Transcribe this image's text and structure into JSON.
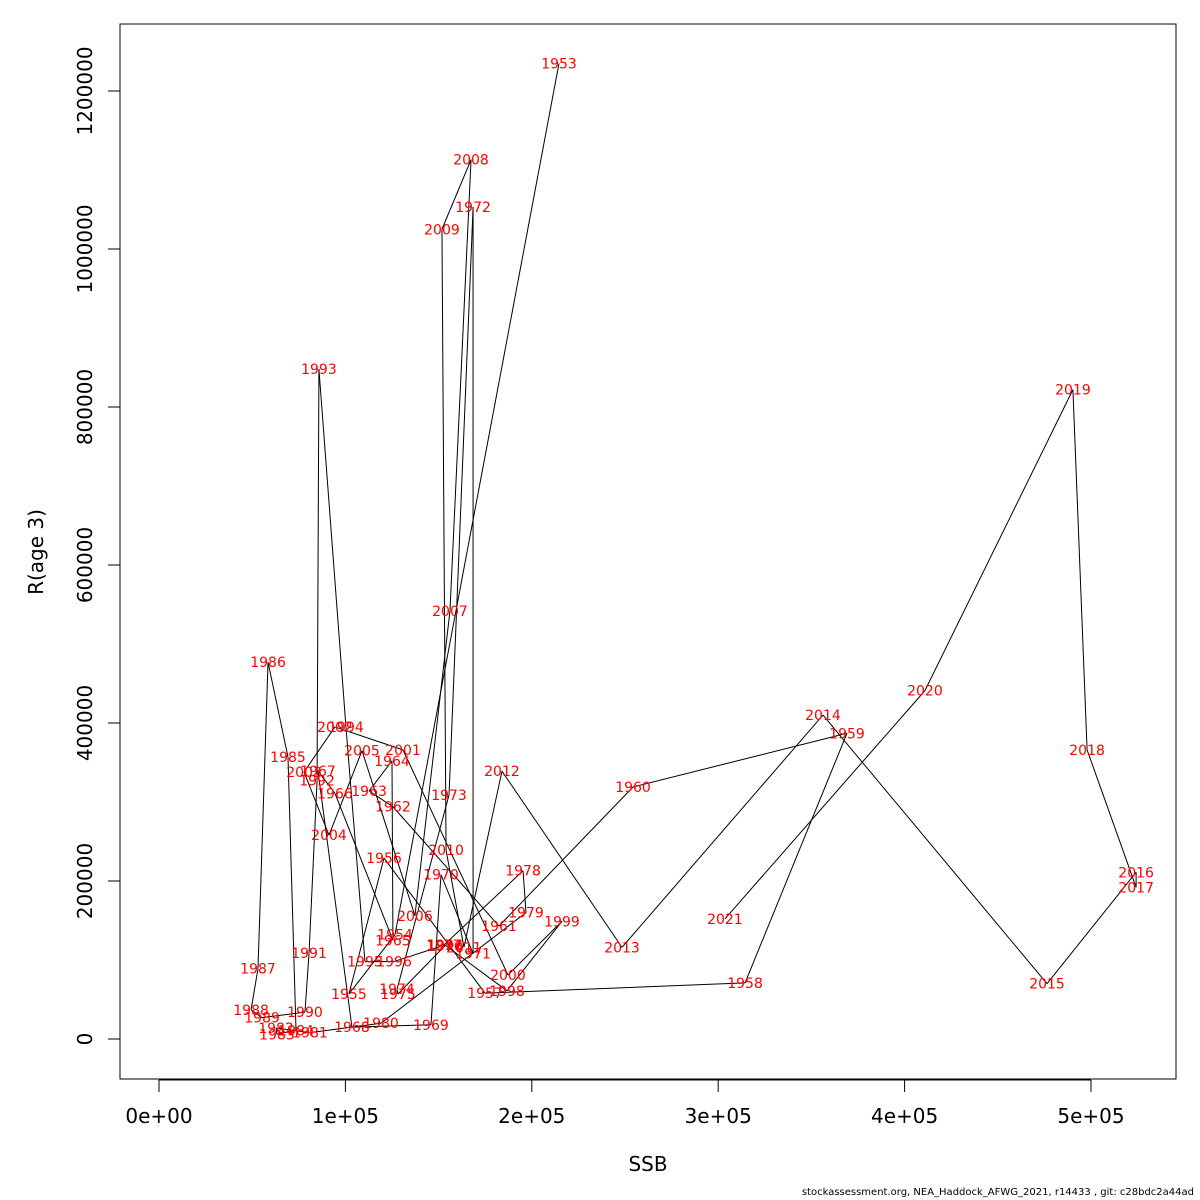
{
  "chart_data": {
    "type": "line",
    "title": "",
    "xlabel": "SSB",
    "ylabel": "R(age 3)",
    "xlim": [
      -21000,
      546000
    ],
    "ylim": [
      -50000,
      1335000
    ],
    "grid": false,
    "legend": "none",
    "x_ticks": [
      0,
      100000,
      200000,
      300000,
      400000,
      500000
    ],
    "x_tick_labels": [
      "0e+00",
      "1e+05",
      "2e+05",
      "3e+05",
      "4e+05",
      "5e+05"
    ],
    "y_ticks": [
      0,
      200000,
      400000,
      600000,
      800000,
      1000000,
      1200000
    ],
    "y_tick_labels": [
      "0",
      "200000",
      "400000",
      "600000",
      "800000",
      "1000000",
      "1200000"
    ],
    "points": [
      {
        "year": "1953",
        "x": 214600,
        "y": 1235000
      },
      {
        "year": "1954",
        "x": 126600,
        "y": 132000
      },
      {
        "year": "1955",
        "x": 101900,
        "y": 57000
      },
      {
        "year": "1956",
        "x": 120700,
        "y": 229000
      },
      {
        "year": "1957",
        "x": 174900,
        "y": 58000
      },
      {
        "year": "1958",
        "x": 314400,
        "y": 71000
      },
      {
        "year": "1959",
        "x": 369100,
        "y": 387000
      },
      {
        "year": "1960",
        "x": 254300,
        "y": 319000
      },
      {
        "year": "1961",
        "x": 182400,
        "y": 143000
      },
      {
        "year": "1962",
        "x": 125500,
        "y": 294000
      },
      {
        "year": "1963",
        "x": 112700,
        "y": 314000
      },
      {
        "year": "1964",
        "x": 125000,
        "y": 352000
      },
      {
        "year": "1965",
        "x": 125500,
        "y": 125000
      },
      {
        "year": "1966",
        "x": 94400,
        "y": 311000
      },
      {
        "year": "1967",
        "x": 85300,
        "y": 339000
      },
      {
        "year": "1968",
        "x": 103500,
        "y": 15000
      },
      {
        "year": "1969",
        "x": 145900,
        "y": 18000
      },
      {
        "year": "1970",
        "x": 151300,
        "y": 208000
      },
      {
        "year": "1971",
        "x": 168500,
        "y": 108000
      },
      {
        "year": "1972",
        "x": 168500,
        "y": 1053000
      },
      {
        "year": "1973",
        "x": 155600,
        "y": 309000
      },
      {
        "year": "1974",
        "x": 127700,
        "y": 63000
      },
      {
        "year": "1975",
        "x": 128200,
        "y": 57000
      },
      {
        "year": "1976",
        "x": 153400,
        "y": 118000
      },
      {
        "year": "1977",
        "x": 152900,
        "y": 119000
      },
      {
        "year": "1978",
        "x": 195300,
        "y": 213000
      },
      {
        "year": "1979",
        "x": 196900,
        "y": 160000
      },
      {
        "year": "1980",
        "x": 119100,
        "y": 20000
      },
      {
        "year": "1981",
        "x": 81000,
        "y": 8000
      },
      {
        "year": "1982",
        "x": 62800,
        "y": 14000
      },
      {
        "year": "1983",
        "x": 63300,
        "y": 6000
      },
      {
        "year": "1984",
        "x": 73500,
        "y": 11000
      },
      {
        "year": "1985",
        "x": 69200,
        "y": 357000
      },
      {
        "year": "1986",
        "x": 58500,
        "y": 477000
      },
      {
        "year": "1987",
        "x": 53100,
        "y": 89000
      },
      {
        "year": "1988",
        "x": 49400,
        "y": 37000
      },
      {
        "year": "1989",
        "x": 55300,
        "y": 27000
      },
      {
        "year": "1990",
        "x": 78300,
        "y": 34000
      },
      {
        "year": "1991",
        "x": 80500,
        "y": 109000
      },
      {
        "year": "1992",
        "x": 84800,
        "y": 327000
      },
      {
        "year": "1993",
        "x": 85800,
        "y": 848000
      },
      {
        "year": "1994",
        "x": 100300,
        "y": 395000
      },
      {
        "year": "1995",
        "x": 110500,
        "y": 98000
      },
      {
        "year": "1996",
        "x": 126100,
        "y": 98000
      },
      {
        "year": "1997",
        "x": 153400,
        "y": 119000
      },
      {
        "year": "1998",
        "x": 186700,
        "y": 61000
      },
      {
        "year": "1999",
        "x": 216200,
        "y": 149000
      },
      {
        "year": "2000",
        "x": 187200,
        "y": 81000
      },
      {
        "year": "2001",
        "x": 130900,
        "y": 366000
      },
      {
        "year": "2002",
        "x": 94400,
        "y": 395000
      },
      {
        "year": "2003",
        "x": 77800,
        "y": 338000
      },
      {
        "year": "2004",
        "x": 91200,
        "y": 258000
      },
      {
        "year": "2005",
        "x": 108900,
        "y": 365000
      },
      {
        "year": "2006",
        "x": 137300,
        "y": 156000
      },
      {
        "year": "2007",
        "x": 156100,
        "y": 542000
      },
      {
        "year": "2008",
        "x": 167400,
        "y": 1113000
      },
      {
        "year": "2009",
        "x": 151800,
        "y": 1025000
      },
      {
        "year": "2010",
        "x": 154000,
        "y": 239000
      },
      {
        "year": "2011",
        "x": 163600,
        "y": 116000
      },
      {
        "year": "2012",
        "x": 184000,
        "y": 339000
      },
      {
        "year": "2013",
        "x": 248400,
        "y": 116000
      },
      {
        "year": "2014",
        "x": 356200,
        "y": 410000
      },
      {
        "year": "2015",
        "x": 476400,
        "y": 70000
      },
      {
        "year": "2016",
        "x": 524200,
        "y": 211000
      },
      {
        "year": "2017",
        "x": 524200,
        "y": 192000
      },
      {
        "year": "2018",
        "x": 497900,
        "y": 366000
      },
      {
        "year": "2019",
        "x": 490300,
        "y": 822000
      },
      {
        "year": "2020",
        "x": 410900,
        "y": 441000
      },
      {
        "year": "2021",
        "x": 303600,
        "y": 152000
      }
    ],
    "label_color": "#ff0000",
    "line_color": "#000000"
  },
  "footer": "stockassessment.org, NEA_Haddock_AFWG_2021, r14433 , git: c28bdc2a44ad"
}
